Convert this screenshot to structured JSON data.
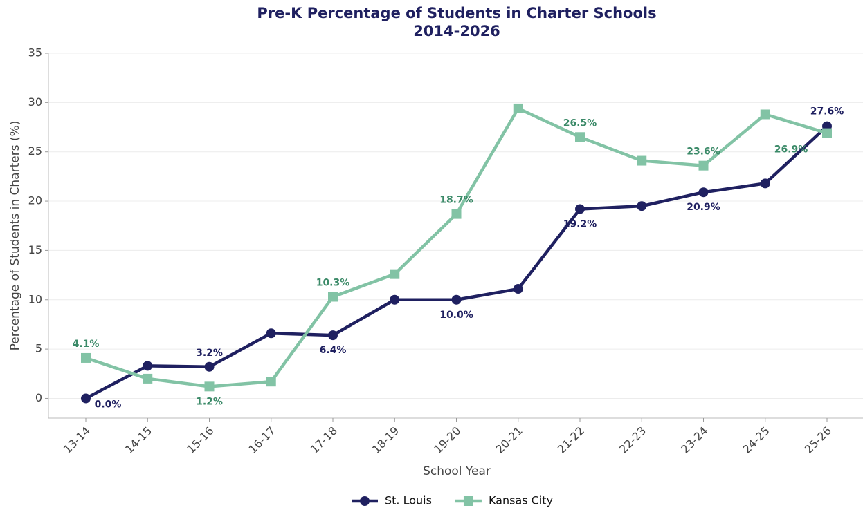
{
  "chart_data": {
    "type": "line",
    "title": "Pre-K Percentage of Students in Charter Schools",
    "subtitle": "2014-2026",
    "x_label": "School Year",
    "y_label": "Percentage of Students in Charters (%)",
    "categories": [
      "13-14",
      "14-15",
      "15-16",
      "16-17",
      "17-18",
      "18-19",
      "19-20",
      "20-21",
      "21-22",
      "22-23",
      "23-24",
      "24-25",
      "25-26"
    ],
    "series": [
      {
        "name": "St. Louis",
        "color": "#1f2060",
        "marker": "circle",
        "values": [
          0.0,
          3.3,
          3.2,
          6.6,
          6.4,
          10.0,
          10.0,
          11.1,
          19.2,
          19.5,
          20.9,
          21.8,
          27.6
        ],
        "value_labels": [
          "0.0%",
          null,
          "3.2%",
          null,
          "6.4%",
          null,
          "10.0%",
          null,
          "19.2%",
          null,
          "20.9%",
          null,
          "27.6%"
        ]
      },
      {
        "name": "Kansas City",
        "color": "#82c3a5",
        "marker": "square",
        "values": [
          4.1,
          2.0,
          1.2,
          1.7,
          10.3,
          12.6,
          18.7,
          29.4,
          26.5,
          24.1,
          23.6,
          28.8,
          26.9
        ],
        "value_labels": [
          "4.1%",
          null,
          "1.2%",
          null,
          "10.3%",
          null,
          "18.7%",
          null,
          "26.5%",
          null,
          "23.6%",
          null,
          "26.9%"
        ]
      }
    ],
    "ylim": [
      -2,
      35
    ],
    "yticks": [
      0,
      5,
      10,
      15,
      20,
      25,
      30,
      35
    ],
    "grid": true,
    "legend": "bottom"
  }
}
